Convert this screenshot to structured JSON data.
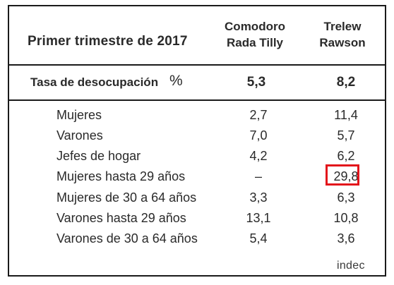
{
  "header": {
    "title": "Primer trimestre de 2017",
    "columns": [
      {
        "line1": "Comodoro",
        "line2": "Rada Tilly"
      },
      {
        "line1": "Trelew",
        "line2": "Rawson"
      }
    ]
  },
  "summary": {
    "label": "Tasa de desocupación",
    "unit": "%",
    "values": [
      "5,3",
      "8,2"
    ]
  },
  "rows": [
    {
      "label": "Mujeres",
      "values": [
        "2,7",
        "11,4"
      ]
    },
    {
      "label": "Varones",
      "values": [
        "7,0",
        "5,7"
      ]
    },
    {
      "label": "Jefes de hogar",
      "values": [
        "4,2",
        "6,2"
      ]
    },
    {
      "label": "Mujeres hasta 29 años",
      "values": [
        "–",
        "29,8"
      ]
    },
    {
      "label": "Mujeres de 30 a 64 años",
      "values": [
        "3,3",
        "6,3"
      ]
    },
    {
      "label": "Varones hasta 29 años",
      "values": [
        "13,1",
        "10,8"
      ]
    },
    {
      "label": "Varones de 30 a 64 años",
      "values": [
        "5,4",
        "3,6"
      ]
    }
  ],
  "highlight_color": "#e3141b",
  "logo": {
    "text": "indec"
  }
}
